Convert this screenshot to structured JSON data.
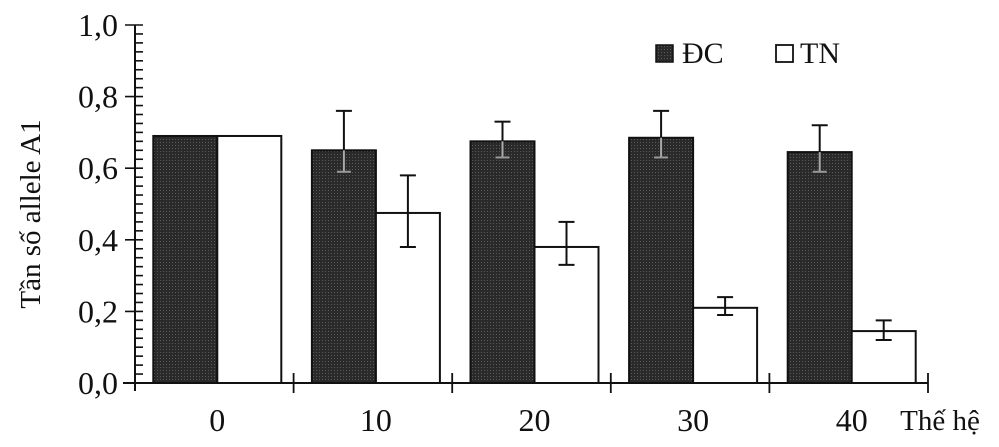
{
  "chart_data": {
    "type": "bar",
    "title": "",
    "xlabel": "Thế hệ",
    "ylabel": "Tần số allele A1",
    "categories": [
      "0",
      "10",
      "20",
      "30",
      "40"
    ],
    "ylim": [
      0.0,
      1.0
    ],
    "yticks": [
      "0,0",
      "0,2",
      "0,4",
      "0,6",
      "0,8",
      "1,0"
    ],
    "grid": false,
    "legend_position": "top-right",
    "series": [
      {
        "name": "ĐC",
        "color": "#2e2e2e",
        "values": [
          0.69,
          0.65,
          0.675,
          0.685,
          0.645
        ],
        "error_low": [
          null,
          0.59,
          0.63,
          0.63,
          0.59
        ],
        "error_high": [
          null,
          0.76,
          0.73,
          0.76,
          0.72
        ]
      },
      {
        "name": "TN",
        "color": "#ffffff",
        "values": [
          0.69,
          0.475,
          0.38,
          0.21,
          0.145
        ],
        "error_low": [
          null,
          0.38,
          0.33,
          0.19,
          0.12
        ],
        "error_high": [
          null,
          0.58,
          0.45,
          0.24,
          0.175
        ]
      }
    ]
  },
  "legend": {
    "items": [
      {
        "label": "ĐC",
        "swatch": "filled-dark"
      },
      {
        "label": "TN",
        "swatch": "empty-white"
      }
    ]
  },
  "axes": {
    "y_title": "Tần số allele A1",
    "x_title": "Thế hệ"
  }
}
